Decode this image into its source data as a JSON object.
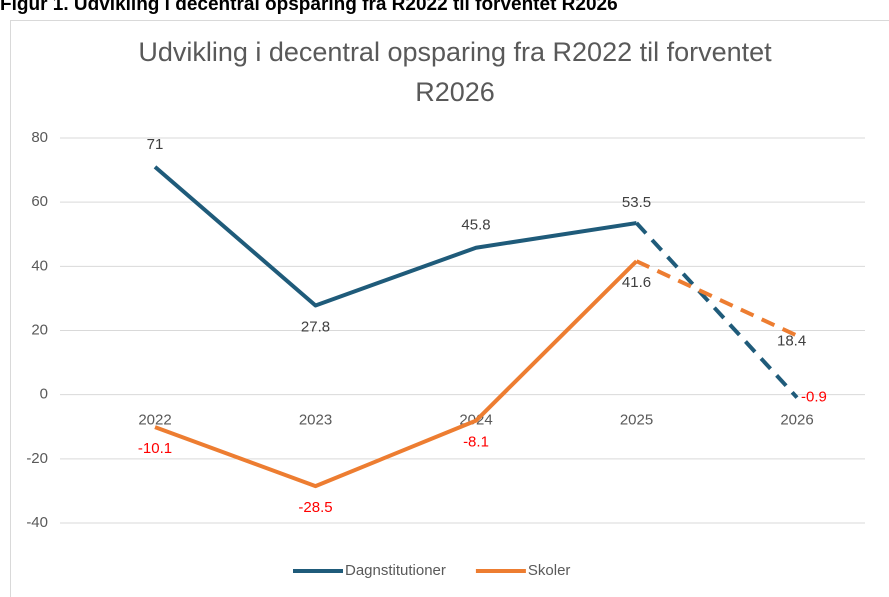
{
  "figure_caption": "Figur 1. Udvikling i decentral opsparing fra R2022 til forventet R2026",
  "chart_data": {
    "type": "line",
    "title": "Udvikling i decentral opsparing fra R2022 til forventet R2026",
    "categories": [
      "2022",
      "2023",
      "2024",
      "2025",
      "2026"
    ],
    "series": [
      {
        "name": "Dagnstitutioner",
        "color": "#1f5b7a",
        "values": [
          71,
          27.8,
          45.8,
          53.5,
          -0.9
        ],
        "dashed_from": 3
      },
      {
        "name": "Skoler",
        "color": "#ed7d31",
        "values": [
          -10.1,
          -28.5,
          -8.1,
          41.6,
          18.4
        ],
        "dashed_from": 3
      }
    ],
    "ylim": [
      -40,
      80
    ],
    "yticks": [
      -40,
      -20,
      0,
      20,
      40,
      60,
      80
    ],
    "grid": true,
    "legend": "bottom"
  }
}
